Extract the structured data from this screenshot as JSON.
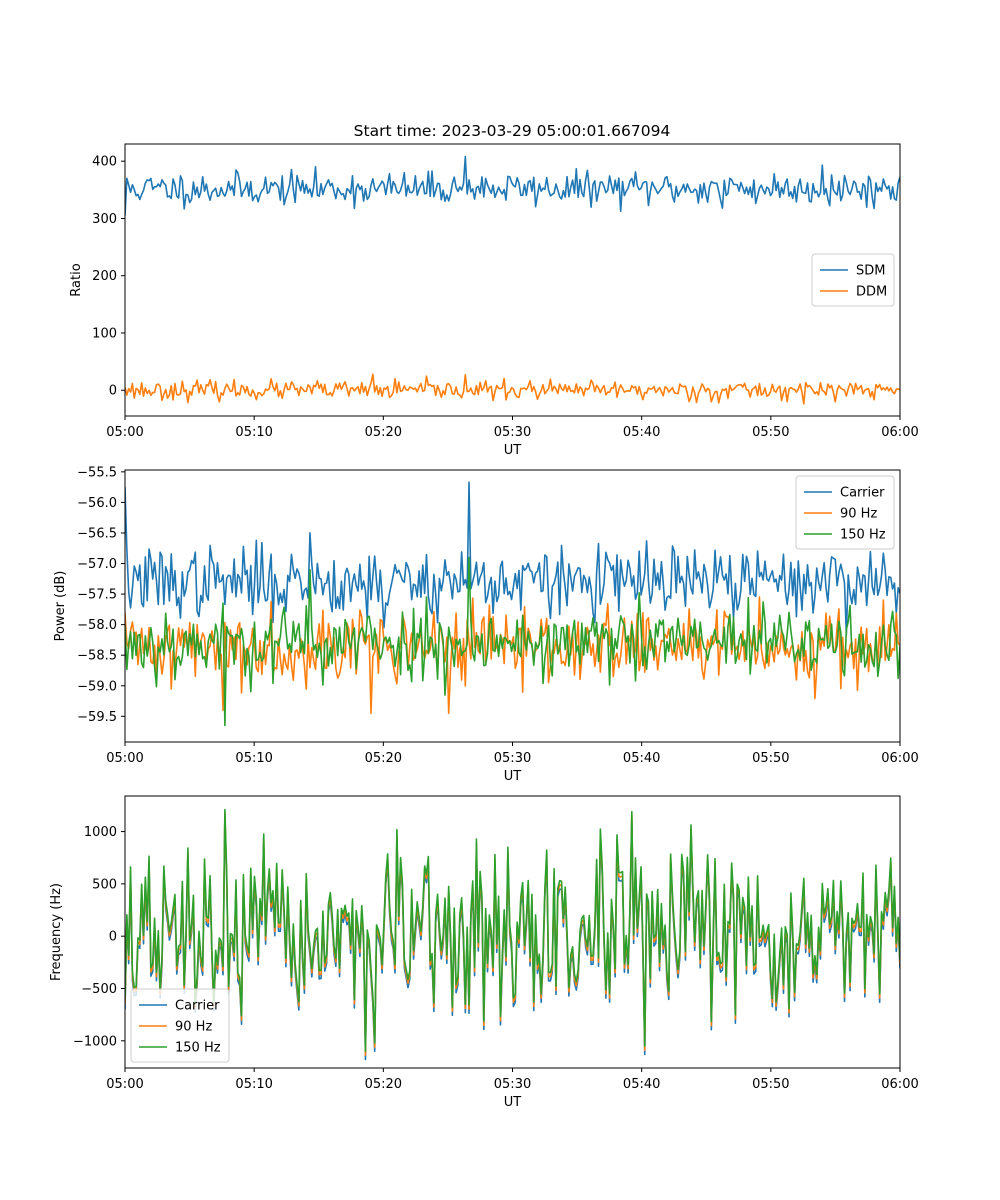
{
  "figure_title": "Start time: 2023-03-29 05:00:01.667094",
  "chart_data": [
    {
      "type": "line",
      "xlabel": "UT",
      "ylabel": "Ratio",
      "x_ticks": [
        "05:00",
        "05:10",
        "05:20",
        "05:30",
        "05:40",
        "05:50",
        "06:00"
      ],
      "xlim_minutes": [
        0,
        60
      ],
      "ylim": [
        -45,
        430
      ],
      "y_ticks": [
        0,
        100,
        200,
        300,
        400
      ],
      "y_tick_labels": [
        "0",
        "100",
        "200",
        "300",
        "400"
      ],
      "legend_position": "center-right",
      "series": [
        {
          "name": "SDM",
          "color": "#1f77b4",
          "mean": 352,
          "noise": 14,
          "start": 305,
          "spikes": [
            [
              26.4,
              408
            ],
            [
              54.0,
              393
            ],
            [
              46.2,
              318
            ]
          ],
          "seed": 11
        },
        {
          "name": "DDM",
          "color": "#ff7f0e",
          "mean": 0,
          "noise": 8,
          "start": 5,
          "spikes": [
            [
              19.2,
              28
            ],
            [
              26.4,
              27
            ],
            [
              46.0,
              -22
            ]
          ],
          "seed": 23
        }
      ]
    },
    {
      "type": "line",
      "xlabel": "UT",
      "ylabel": "Power (dB)",
      "x_ticks": [
        "05:00",
        "05:10",
        "05:20",
        "05:30",
        "05:40",
        "05:50",
        "06:00"
      ],
      "xlim_minutes": [
        0,
        60
      ],
      "ylim": [
        -59.92,
        -55.47
      ],
      "y_ticks": [
        -59.5,
        -59.0,
        -58.5,
        -58.0,
        -57.5,
        -57.0,
        -56.5,
        -56.0,
        -55.5
      ],
      "y_tick_labels": [
        "−59.5",
        "−59.0",
        "−58.5",
        "−58.0",
        "−57.5",
        "−57.0",
        "−56.5",
        "−56.0",
        "−55.5"
      ],
      "legend_position": "top-right",
      "series": [
        {
          "name": "Carrier",
          "color": "#1f77b4",
          "mean": -57.3,
          "noise": 0.28,
          "start": -55.75,
          "spikes": [
            [
              26.6,
              -55.67
            ],
            [
              14.3,
              -56.5
            ],
            [
              20.0,
              -58.05
            ]
          ],
          "seed": 37
        },
        {
          "name": "90 Hz",
          "color": "#ff7f0e",
          "mean": -58.35,
          "noise": 0.3,
          "start": -57.8,
          "spikes": [
            [
              7.6,
              -59.4
            ],
            [
              19.0,
              -59.45
            ],
            [
              25.0,
              -59.45
            ]
          ],
          "seed": 41
        },
        {
          "name": "150 Hz",
          "color": "#2ca02c",
          "mean": -58.3,
          "noise": 0.3,
          "start": -58.0,
          "spikes": [
            [
              7.7,
              -59.65
            ],
            [
              26.6,
              -56.9
            ],
            [
              14.3,
              -57.1
            ]
          ],
          "seed": 53
        }
      ]
    },
    {
      "type": "line",
      "xlabel": "UT",
      "ylabel": "Frequency (Hz)",
      "x_ticks": [
        "05:00",
        "05:10",
        "05:20",
        "05:30",
        "05:40",
        "05:50",
        "06:00"
      ],
      "xlim_minutes": [
        0,
        60
      ],
      "ylim": [
        -1260,
        1340
      ],
      "y_ticks": [
        -1000,
        -500,
        0,
        500,
        1000
      ],
      "y_tick_labels": [
        "−1000",
        "−500",
        "0",
        "500",
        "1000"
      ],
      "legend_position": "bottom-left",
      "series": [
        {
          "name": "Carrier",
          "color": "#1f77b4",
          "mean": -70,
          "noise": 380,
          "start": -700,
          "spikes": [
            [
              7.7,
              1150
            ],
            [
              39.3,
              1130
            ],
            [
              40.3,
              -1130
            ],
            [
              19.3,
              -1100
            ]
          ],
          "seed": 67
        },
        {
          "name": "90 Hz",
          "color": "#ff7f0e",
          "mean": -30,
          "noise": 380,
          "start": -650,
          "spikes": [
            [
              7.7,
              1180
            ],
            [
              39.3,
              1160
            ],
            [
              40.3,
              -1090
            ],
            [
              19.3,
              -1060
            ]
          ],
          "seed": 67
        },
        {
          "name": "150 Hz",
          "color": "#2ca02c",
          "mean": 10,
          "noise": 380,
          "start": -600,
          "spikes": [
            [
              7.7,
              1210
            ],
            [
              39.3,
              1190
            ],
            [
              40.3,
              -1050
            ],
            [
              19.3,
              -1020
            ]
          ],
          "seed": 67
        }
      ]
    }
  ]
}
